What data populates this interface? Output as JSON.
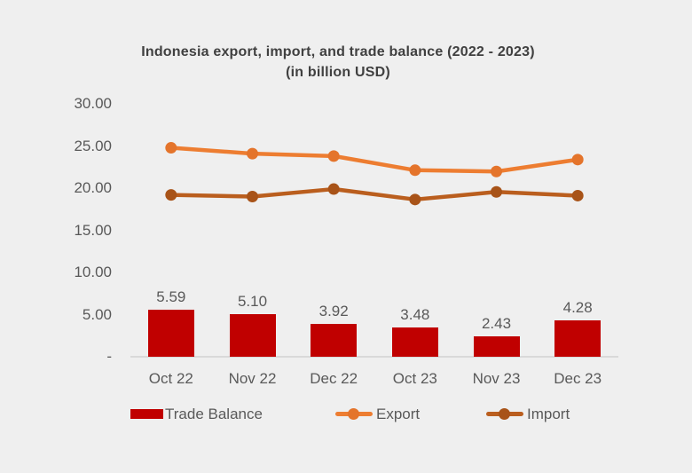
{
  "title": {
    "line1": "Indonesia export, import, and trade balance (2022 - 2023)",
    "line2": "(in billion USD)"
  },
  "chart_data": {
    "type": "combo",
    "title": "Indonesia export, import, and trade balance (2022 - 2023) (in billion USD)",
    "categories": [
      "Oct 22",
      "Nov 22",
      "Dec 22",
      "Oct 23",
      "Nov 23",
      "Dec 23"
    ],
    "series": [
      {
        "name": "Trade Balance",
        "type": "bar",
        "color": "#C00000",
        "values": [
          5.59,
          5.1,
          3.92,
          3.48,
          2.43,
          4.28
        ],
        "labels": [
          "5.59",
          "5.10",
          "3.92",
          "3.48",
          "2.43",
          "4.28"
        ]
      },
      {
        "name": "Export",
        "type": "line",
        "color": "#ED7D31",
        "dot_color": "#E4742B",
        "values": [
          24.81,
          24.12,
          23.83,
          22.15,
          22.0,
          23.41
        ]
      },
      {
        "name": "Import",
        "type": "line",
        "color": "#BA5E1E",
        "dot_color": "#A85318",
        "values": [
          19.22,
          19.02,
          19.91,
          18.67,
          19.57,
          19.13
        ]
      }
    ],
    "xlabel": "",
    "ylabel": "",
    "ylim": [
      0,
      30
    ],
    "yticks": [
      {
        "value": 30,
        "label": "30.00"
      },
      {
        "value": 25,
        "label": "25.00"
      },
      {
        "value": 20,
        "label": "20.00"
      },
      {
        "value": 15,
        "label": "15.00"
      },
      {
        "value": 10,
        "label": "10.00"
      },
      {
        "value": 5,
        "label": "5.00"
      },
      {
        "value": 0,
        "label": "-"
      }
    ],
    "grid": false,
    "legend_position": "bottom",
    "legend": [
      {
        "label": "Trade Balance",
        "marker": "bar",
        "color": "#C00000"
      },
      {
        "label": "Export",
        "marker": "line-dot",
        "color": "#ED7D31",
        "dot_color": "#E4742B"
      },
      {
        "label": "Import",
        "marker": "line-dot",
        "color": "#BA5E1E",
        "dot_color": "#A85318"
      }
    ]
  },
  "colors": {
    "background": "#EFEFEF",
    "axis_line": "#D9D9D9",
    "title_text": "#404040",
    "label_text": "#595959"
  }
}
